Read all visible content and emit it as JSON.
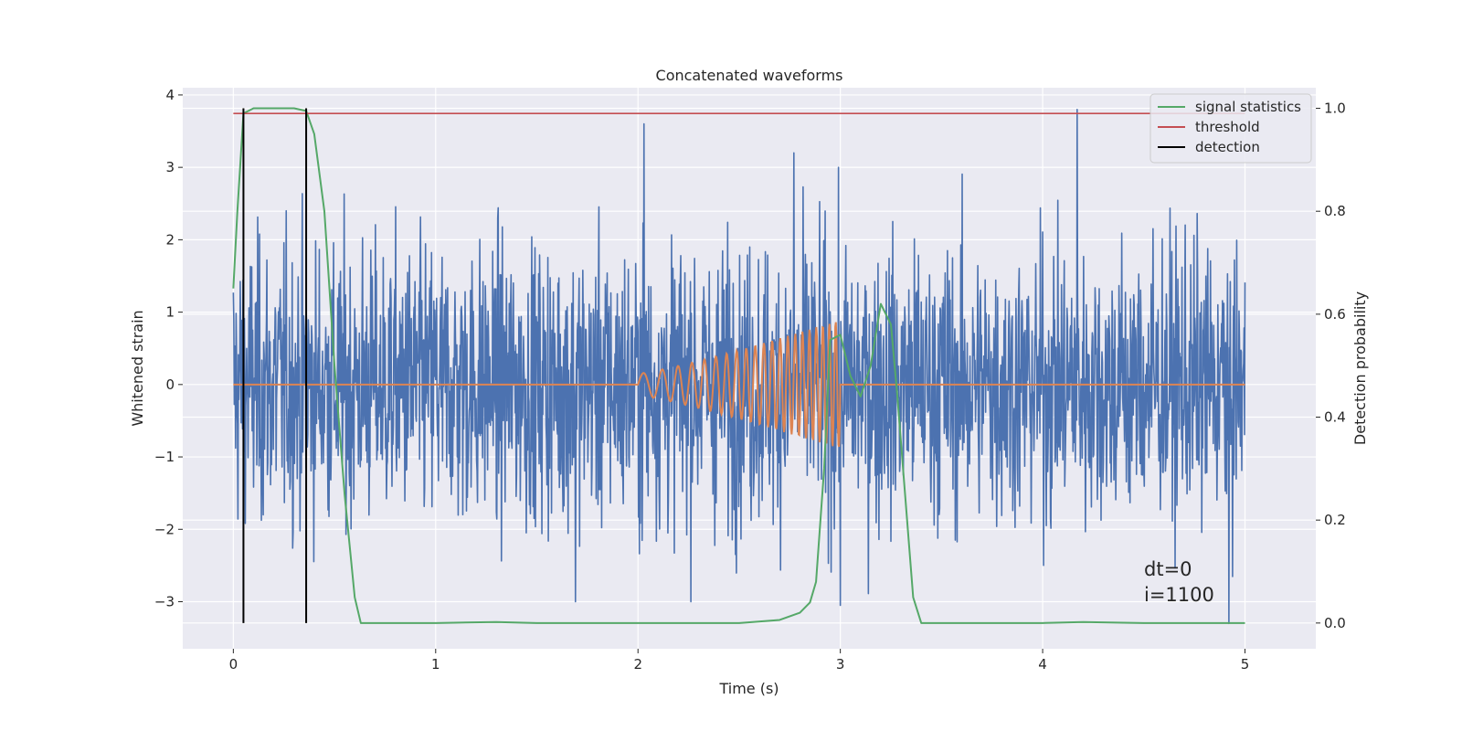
{
  "chart_data": {
    "type": "line",
    "title": "Concatenated waveforms",
    "xlabel": "Time (s)",
    "ylabel": "Whitened strain",
    "y2label": "Detection probability",
    "xlim": [
      -0.25,
      5.35
    ],
    "ylim": [
      -3.65,
      4.1
    ],
    "y2lim": [
      -0.05,
      1.04
    ],
    "xticks": [
      0,
      1,
      2,
      3,
      4,
      5
    ],
    "yticks": [
      -3,
      -2,
      -1,
      0,
      1,
      2,
      3,
      4
    ],
    "y2ticks": [
      0.0,
      0.2,
      0.4,
      0.6,
      0.8,
      1.0
    ],
    "grid": true,
    "legend_position": "top-right",
    "series": [
      {
        "name": "",
        "axis": "left",
        "color": "#4c72b0",
        "description_kind": "noise",
        "x_range": [
          0,
          5
        ],
        "peaks": [
          {
            "x": 2.03,
            "y": 3.6
          },
          {
            "x": 4.17,
            "y": 3.8
          },
          {
            "x": 2.77,
            "y": 3.2
          },
          {
            "x": 4.92,
            "y": -3.3
          },
          {
            "x": 3.0,
            "y": -3.05
          },
          {
            "x": 1.69,
            "y": -3.0
          }
        ]
      },
      {
        "name": "",
        "axis": "left",
        "color": "#dd8452",
        "description_kind": "chirp",
        "x_range": [
          0,
          5
        ],
        "chirp_start": 2.0,
        "chirp_end": 3.0,
        "amplitude_start": 0.15,
        "amplitude_end": 0.9
      },
      {
        "name": "signal statistics",
        "axis": "right",
        "color": "#55a868",
        "x": [
          0.0,
          0.02,
          0.05,
          0.1,
          0.2,
          0.3,
          0.36,
          0.4,
          0.45,
          0.5,
          0.55,
          0.6,
          0.63,
          0.7,
          1.0,
          1.3,
          1.5,
          2.0,
          2.5,
          2.7,
          2.8,
          2.85,
          2.88,
          2.92,
          2.95,
          3.0,
          3.05,
          3.1,
          3.15,
          3.2,
          3.25,
          3.28,
          3.32,
          3.36,
          3.4,
          3.5,
          4.0,
          4.2,
          4.5,
          5.0
        ],
        "y": [
          0.65,
          0.8,
          0.99,
          1.0,
          1.0,
          1.0,
          0.995,
          0.95,
          0.8,
          0.5,
          0.25,
          0.05,
          0.0,
          0.0,
          0.0,
          0.002,
          0.0,
          0.0,
          0.0,
          0.006,
          0.02,
          0.04,
          0.08,
          0.3,
          0.55,
          0.56,
          0.48,
          0.44,
          0.5,
          0.62,
          0.58,
          0.45,
          0.25,
          0.05,
          0.0,
          0.0,
          0.0,
          0.002,
          0.0,
          0.0
        ]
      },
      {
        "name": "threshold",
        "axis": "right",
        "color": "#c44e52",
        "x": [
          0,
          5
        ],
        "y": [
          0.99,
          0.99
        ]
      },
      {
        "name": "detection",
        "axis": "right",
        "color": "#000000",
        "kind": "vertical-lines",
        "x": [
          0.05,
          0.36
        ],
        "y_range": [
          0.0,
          1.0
        ]
      }
    ],
    "annotations": [
      "dt=0",
      "i=1100"
    ]
  },
  "colors": {
    "axes_background": "#eaeaf2",
    "grid": "#ffffff"
  }
}
